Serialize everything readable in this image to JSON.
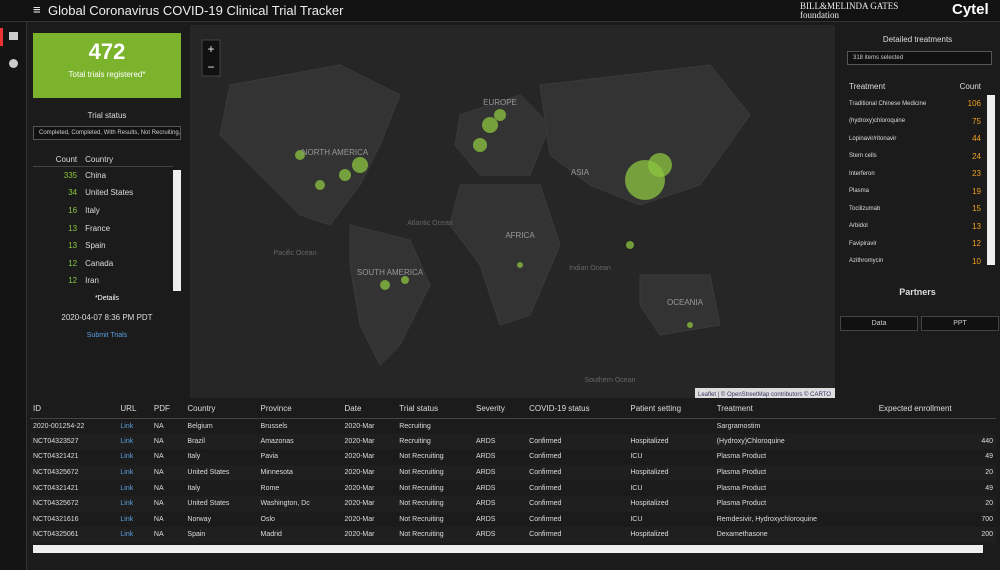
{
  "header": {
    "title": "Global Coronavirus COVID-19 Clinical Trial Tracker",
    "logo_gates": "BILL&MELINDA GATES foundation",
    "logo_cytel": "Cytel"
  },
  "kpi": {
    "value": "472",
    "label": "Total trials registered*"
  },
  "trial_status": {
    "title": "Trial status",
    "select": "Completed, Completed, With Results, Not Recruiting, F"
  },
  "country_table": {
    "headers": [
      "Count",
      "Country"
    ],
    "rows": [
      [
        "335",
        "China"
      ],
      [
        "34",
        "United States"
      ],
      [
        "16",
        "Italy"
      ],
      [
        "13",
        "France"
      ],
      [
        "13",
        "Spain"
      ],
      [
        "12",
        "Canada"
      ],
      [
        "12",
        "Iran"
      ]
    ]
  },
  "details": {
    "label": "*Details",
    "timestamp": "2020-04-07 8:36 PM PDT",
    "submit": "Submit Trials"
  },
  "map": {
    "zoom_in": "+",
    "zoom_out": "−",
    "labels": [
      "NORTH AMERICA",
      "SOUTH AMERICA",
      "EUROPE",
      "AFRICA",
      "ASIA",
      "OCEANIA",
      "Pacific Ocean",
      "Atlantic Ocean",
      "Indian Ocean",
      "Southern Ocean"
    ],
    "attribution": "Leaflet | © OpenStreetMap contributors © CARTO"
  },
  "treatments": {
    "title": "Detailed treatments",
    "select": "318 items selected",
    "headers": [
      "Treatment",
      "Count"
    ],
    "rows": [
      [
        "Traditional Chinese Medicine",
        "106"
      ],
      [
        "(hydroxy)chloroquine",
        "75"
      ],
      [
        "Lopinavir/ritonavir",
        "44"
      ],
      [
        "Stem cells",
        "24"
      ],
      [
        "Interferon",
        "23"
      ],
      [
        "Plasma",
        "19"
      ],
      [
        "Tocilizumab",
        "15"
      ],
      [
        "Arbidol",
        "13"
      ],
      [
        "Favipiravir",
        "12"
      ],
      [
        "Azithromycin",
        "10"
      ]
    ]
  },
  "partners": {
    "label": "Partners",
    "data_button": "Data",
    "ppt_button": "PPT"
  },
  "trials_table": {
    "headers": [
      "ID",
      "URL",
      "PDF",
      "Country",
      "Province",
      "Date",
      "Trial status",
      "Severity",
      "COVID-19 status",
      "Patient setting",
      "Treatment",
      "Expected enrollment"
    ],
    "rows": [
      [
        "2020-001254-22",
        "Link",
        "NA",
        "Belgium",
        "Brussels",
        "2020-Mar",
        "Recruiting",
        null,
        null,
        null,
        "Sargramostim",
        null
      ],
      [
        "NCT04323527",
        "Link",
        "NA",
        "Brazil",
        "Amazonas",
        "2020-Mar",
        "Recruiting",
        "ARDS",
        "Confirmed",
        "Hospitalized",
        "(Hydroxy)Chloroquine",
        "440"
      ],
      [
        "NCT04321421",
        "Link",
        "NA",
        "Italy",
        "Pavia",
        "2020-Mar",
        "Not Recruiting",
        "ARDS",
        "Confirmed",
        "ICU",
        "Plasma Product",
        "49"
      ],
      [
        "NCT04325672",
        "Link",
        "NA",
        "United States",
        "Minnesota",
        "2020-Mar",
        "Not Recruiting",
        "ARDS",
        "Confirmed",
        "Hospitalized",
        "Plasma Product",
        "20"
      ],
      [
        "NCT04321421",
        "Link",
        "NA",
        "Italy",
        "Rome",
        "2020-Mar",
        "Not Recruiting",
        "ARDS",
        "Confirmed",
        "ICU",
        "Plasma Product",
        "49"
      ],
      [
        "NCT04325672",
        "Link",
        "NA",
        "United States",
        "Washington, Dc",
        "2020-Mar",
        "Not Recruiting",
        "ARDS",
        "Confirmed",
        "Hospitalized",
        "Plasma Product",
        "20"
      ],
      [
        "NCT04321616",
        "Link",
        "NA",
        "Norway",
        "Oslo",
        "2020-Mar",
        "Not Recruiting",
        "ARDS",
        "Confirmed",
        "ICU",
        "Remdesivir, Hydroxychloroquine",
        "700"
      ],
      [
        "NCT04325061",
        "Link",
        "NA",
        "Spain",
        "Madrid",
        "2020-Mar",
        "Not Recruiting",
        "ARDS",
        "Confirmed",
        "Hospitalized",
        "Dexamethasone",
        "200"
      ]
    ]
  }
}
